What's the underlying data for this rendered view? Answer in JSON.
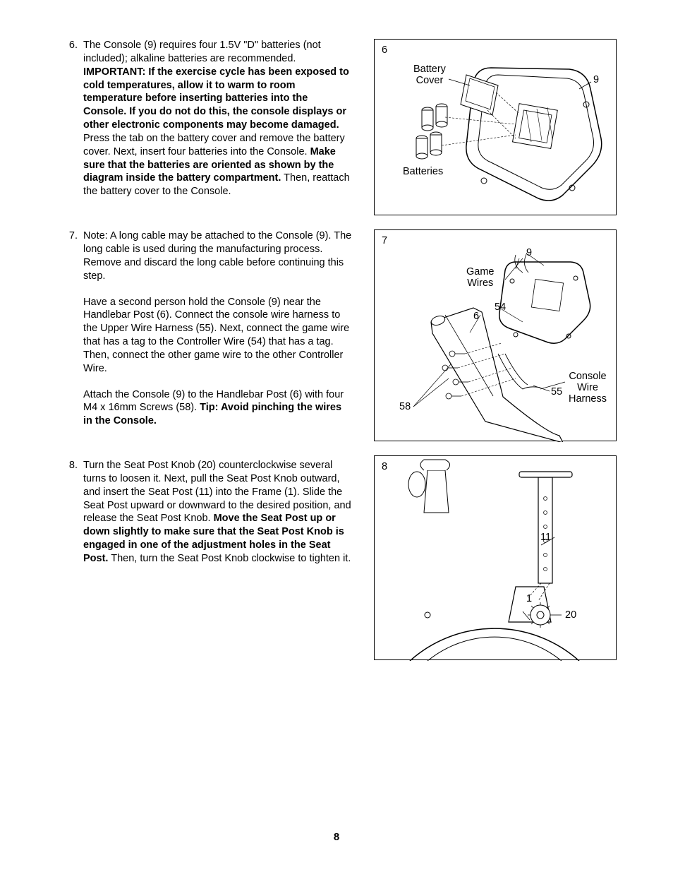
{
  "pageNumber": "8",
  "steps": [
    {
      "num": "6.",
      "paragraphs": [
        "<span>The Console (9) requires four 1.5V \"D\" batteries (not included); alkaline batteries are recommended. <b>IMPORTANT: If the exercise cycle has been exposed to cold temperatures, allow it to warm to room temperature before inserting batteries into the Console. If you do not do this, the console displays or other electronic components may become damaged.</b> Press the tab on the battery cover and remove the battery cover. Next, insert four batteries into the Console. <b>Make sure that the batteries are oriented as shown by the diagram inside the battery compartment.</b> Then, reattach the battery cover to the Console.</span>"
      ]
    },
    {
      "num": "7.",
      "paragraphs": [
        "<span>Note: A long cable may be attached to the Console (9). The long cable is used during the manufacturing process. Remove and discard the long cable before continuing this step.</span>",
        "<span>Have a second person hold the Console (9) near the Handlebar Post (6). Connect the console wire harness to the Upper Wire Harness (55). Next, connect the game wire that has a tag to the Controller Wire (54) that has a tag. Then, connect the other game wire to the other Controller Wire.</span>",
        "<span>Attach the Console (9) to the Handlebar Post (6) with four M4 x 16mm Screws (58). <b>Tip: Avoid pinching the wires in the Console.</b></span>"
      ]
    },
    {
      "num": "8.",
      "paragraphs": [
        "<span>Turn the Seat Post Knob (20) counterclockwise several turns to loosen it. Next, pull the Seat Post Knob outward, and insert the Seat Post (11) into the Frame (1). Slide the Seat Post upward or downward to the desired position, and release the Seat Post Knob. <b>Move the Seat Post up or down slightly to make sure that the Seat Post Knob is engaged in one of the adjustment holes in the Seat Post.</b> Then, turn the Seat Post Knob clockwise to tighten it.</span>"
      ]
    }
  ],
  "fig6": {
    "num": "6",
    "labels": {
      "batteryCover": "Battery\nCover",
      "nine": "9",
      "batteries": "Batteries"
    }
  },
  "fig7": {
    "num": "7",
    "labels": {
      "nine": "9",
      "gameWires": "Game\nWires",
      "fiftyfour": "54",
      "six": "6",
      "fiftyfive": "55",
      "fiftyeight": "58",
      "consoleWireHarness": "Console\nWire\nHarness"
    }
  },
  "fig8": {
    "num": "8",
    "labels": {
      "eleven": "11",
      "one": "1",
      "twenty": "20"
    }
  }
}
